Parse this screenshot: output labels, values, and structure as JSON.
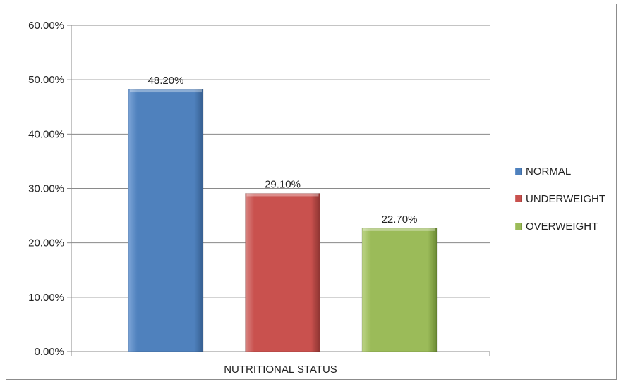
{
  "chart_data": {
    "type": "bar",
    "title": "",
    "xlabel": "NUTRITIONAL STATUS",
    "ylabel": "",
    "ylim": [
      0,
      60
    ],
    "y_ticks": [
      0,
      10,
      20,
      30,
      40,
      50,
      60
    ],
    "y_tick_labels": [
      "0.00%",
      "10.00%",
      "20.00%",
      "30.00%",
      "40.00%",
      "50.00%",
      "60.00%"
    ],
    "grid": true,
    "legend_position": "right",
    "series": [
      {
        "name": "NORMAL",
        "value": 48.2,
        "label": "48.20%",
        "color": "#4f81bd"
      },
      {
        "name": "UNDERWEIGHT",
        "value": 29.1,
        "label": "29.10%",
        "color": "#c0504d"
      },
      {
        "name": "OVERWEIGHT",
        "value": 22.7,
        "label": "22.70%",
        "color": "#9bbb59"
      }
    ]
  }
}
